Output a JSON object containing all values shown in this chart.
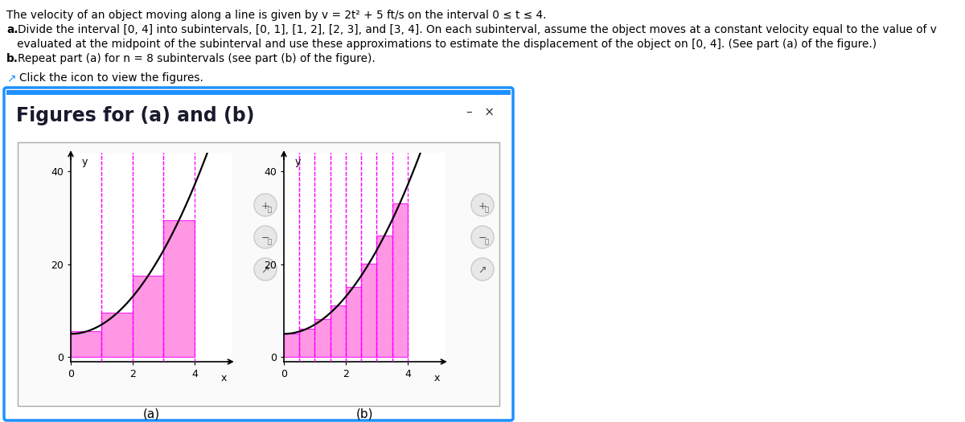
{
  "title": "Figures for (a) and (b)",
  "n_a": 4,
  "n_b": 8,
  "t_start": 0,
  "t_end": 4,
  "xlim": [
    0,
    5.2
  ],
  "ylim": [
    -1,
    44
  ],
  "yticks": [
    0,
    20,
    40
  ],
  "xticks": [
    0,
    2,
    4
  ],
  "xlabel": "x",
  "ylabel": "y",
  "bar_color": "#FF85E0",
  "bar_edgecolor": "#FF00FF",
  "curve_color": "#000000",
  "dashed_color": "#FF00FF",
  "outer_bg": "#FFFFFF",
  "dialog_edge": "#1E90FF",
  "dialog_face": "#FFFFFF",
  "inner_box_edge": "#BBBBBB",
  "inner_box_face": "#FFFFFF",
  "title_fontsize": 17,
  "label_fontsize": 9,
  "tick_fontsize": 9,
  "subtitle_fontsize": 11,
  "text_lines": [
    "The velocity of an object moving along a line is given by v = 2t² + 5 ft/s on the interval 0 ≤ t ≤ 4.",
    "a. Divide the interval [0, 4] into subintervals, [0, 1], [1, 2], [2, 3], and [3, 4]. On each subinterval, assume the object moves at a constant velocity equal to the value of v",
    "   evaluated at the midpoint of the subinterval and use these approximations to estimate the displacement of the object on [0, 4]. (See part (a) of the figure.)",
    "b. Repeat part (a) for n = 8 subintervals (see part (b) of the figure)."
  ],
  "line_bold": [
    false,
    true,
    false,
    true
  ],
  "line_bold_prefix": [
    "",
    "a.",
    "",
    "b."
  ],
  "subtitle_a": "(a)",
  "subtitle_b": "(b)"
}
